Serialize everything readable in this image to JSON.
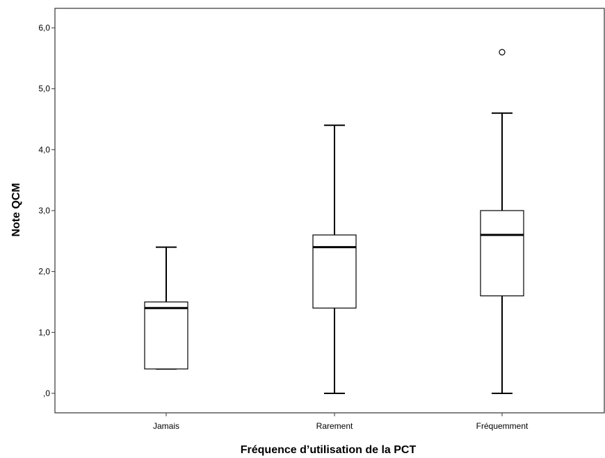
{
  "chart_data": {
    "type": "boxplot",
    "xlabel": "Fréquence d’utilisation de la PCT",
    "ylabel": "Note QCM",
    "ylim": [
      -0.32,
      6.32
    ],
    "yticks": [
      0,
      1,
      2,
      3,
      4,
      5,
      6
    ],
    "ytick_labels": [
      ",0",
      "1,0",
      "2,0",
      "3,0",
      "4,0",
      "5,0",
      "6,0"
    ],
    "categories": [
      "Jamais",
      "Rarement",
      "Fréquemment"
    ],
    "boxes": [
      {
        "category": "Jamais",
        "min": 0.4,
        "q1": 0.4,
        "median": 1.4,
        "q3": 1.5,
        "max": 2.4,
        "outliers": []
      },
      {
        "category": "Rarement",
        "min": 0.0,
        "q1": 1.4,
        "median": 2.4,
        "q3": 2.6,
        "max": 4.4,
        "outliers": []
      },
      {
        "category": "Fréquemment",
        "min": 0.0,
        "q1": 1.6,
        "median": 2.6,
        "q3": 3.0,
        "max": 4.6,
        "outliers": [
          5.6
        ]
      }
    ],
    "grid": false,
    "legend": "none"
  }
}
